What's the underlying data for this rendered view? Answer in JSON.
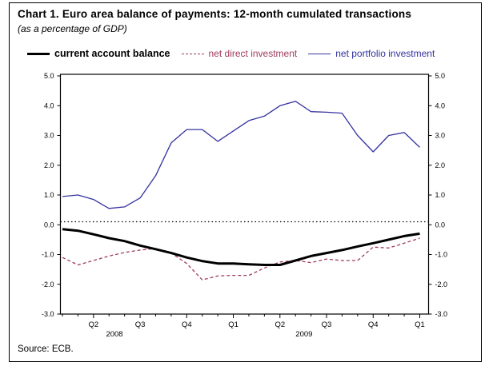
{
  "figure": {
    "source": "Source: ECB."
  },
  "chart_data": {
    "type": "line",
    "title": "Chart 1. Euro area balance of payments: 12-month cumulated transactions",
    "subtitle": "(as a percentage of GDP)",
    "xlabel": "",
    "ylabel": "",
    "ylim": [
      -3.0,
      5.0
    ],
    "y_ticks": [
      5.0,
      4.0,
      3.0,
      2.0,
      1.0,
      0.0,
      -1.0,
      -2.0,
      -3.0
    ],
    "y_axis_sides": "both",
    "grid": false,
    "reference_line": 0.1,
    "reference_line_style": "dotted",
    "legend_position": "top",
    "x_months": [
      "Feb-08",
      "Mar-08",
      "Apr-08",
      "May-08",
      "Jun-08",
      "Jul-08",
      "Aug-08",
      "Sep-08",
      "Oct-08",
      "Nov-08",
      "Dec-08",
      "Jan-09",
      "Feb-09",
      "Mar-09",
      "Apr-09",
      "May-09",
      "Jun-09",
      "Jul-09",
      "Aug-09",
      "Sep-09",
      "Oct-09",
      "Nov-09",
      "Dec-09",
      "Jan-10"
    ],
    "x_quarter_labels": [
      {
        "label": "Q2",
        "month_index": 2
      },
      {
        "label": "Q3",
        "month_index": 5
      },
      {
        "label": "Q4",
        "month_index": 8
      },
      {
        "label": "Q1",
        "month_index": 11
      },
      {
        "label": "Q2",
        "month_index": 14
      },
      {
        "label": "Q3",
        "month_index": 17
      },
      {
        "label": "Q4",
        "month_index": 20
      },
      {
        "label": "Q1",
        "month_index": 23
      }
    ],
    "x_year_labels": [
      {
        "label": "2008",
        "month_index": 3.35
      },
      {
        "label": "2009",
        "month_index": 15.55
      }
    ],
    "series": [
      {
        "name": "current account balance",
        "color": "#000000",
        "style": "solid-thick",
        "values": [
          -0.15,
          -0.2,
          -0.32,
          -0.45,
          -0.55,
          -0.7,
          -0.82,
          -0.95,
          -1.1,
          -1.22,
          -1.3,
          -1.3,
          -1.33,
          -1.35,
          -1.35,
          -1.2,
          -1.05,
          -0.95,
          -0.85,
          -0.73,
          -0.62,
          -0.5,
          -0.38,
          -0.3
        ]
      },
      {
        "name": "net direct investment",
        "color": "#a03a5e",
        "style": "dashed",
        "values": [
          -1.1,
          -1.35,
          -1.2,
          -1.05,
          -0.93,
          -0.85,
          -0.8,
          -0.95,
          -1.3,
          -1.85,
          -1.72,
          -1.7,
          -1.7,
          -1.45,
          -1.25,
          -1.2,
          -1.27,
          -1.15,
          -1.2,
          -1.2,
          -0.75,
          -0.78,
          -0.62,
          -0.45
        ]
      },
      {
        "name": "net portfolio investment",
        "color": "#3333a0",
        "style": "solid",
        "values": [
          0.95,
          1.0,
          0.85,
          0.55,
          0.6,
          0.9,
          1.65,
          2.75,
          3.2,
          3.2,
          2.8,
          3.15,
          3.5,
          3.65,
          4.0,
          4.15,
          3.8,
          3.78,
          3.75,
          3.0,
          2.45,
          3.0,
          3.1,
          2.6
        ]
      }
    ]
  }
}
